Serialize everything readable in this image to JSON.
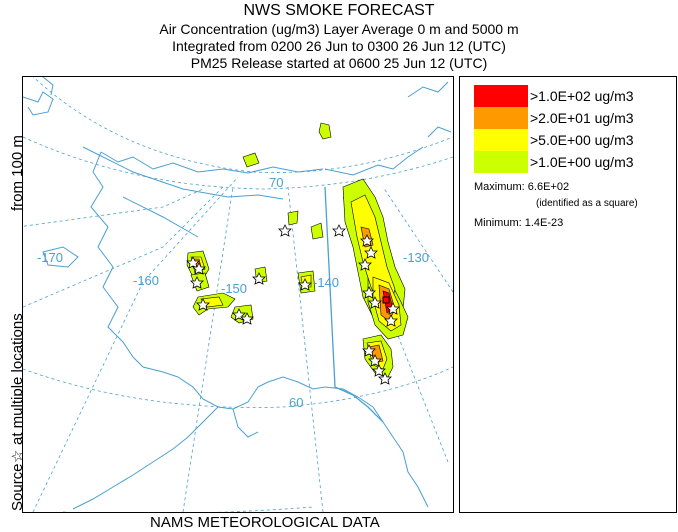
{
  "title": {
    "line1": "NWS SMOKE FORECAST",
    "line2": "Air Concentration (ug/m3) Layer Average     0 m and  5000 m",
    "line3": "Integrated from 0200 26 Jun to 0300 26 Jun 12 (UTC)",
    "line4": "PM25 Release started at 0600 25 Jun 12 (UTC)"
  },
  "side_label": {
    "part1": "Source",
    "star": "☆",
    "part2": "at multiple locations",
    "part3": "from    100 m"
  },
  "footer": "NAMS METEOROLOGICAL DATA",
  "map": {
    "longitude_labels": [
      "-170",
      "-160",
      "-150",
      "-140",
      "-130"
    ],
    "latitude_labels": [
      "70",
      "60"
    ],
    "colors": {
      "coast": "#4aa0d0",
      "grid": "#4aa0d0",
      "border": "#4aa0d0"
    }
  },
  "legend": {
    "items": [
      {
        "color": "#ff0000",
        "label": ">1.0E+02 ug/m3"
      },
      {
        "color": "#ff9900",
        "label": ">2.0E+01 ug/m3"
      },
      {
        "color": "#ffff00",
        "label": ">5.0E+00 ug/m3"
      },
      {
        "color": "#ccff00",
        "label": ">1.0E+00 ug/m3"
      }
    ],
    "maximum_label": "Maximum: 6.6E+02",
    "maximum_note": "(identified as a square)",
    "minimum_label": "Minimum: 1.4E-23"
  }
}
